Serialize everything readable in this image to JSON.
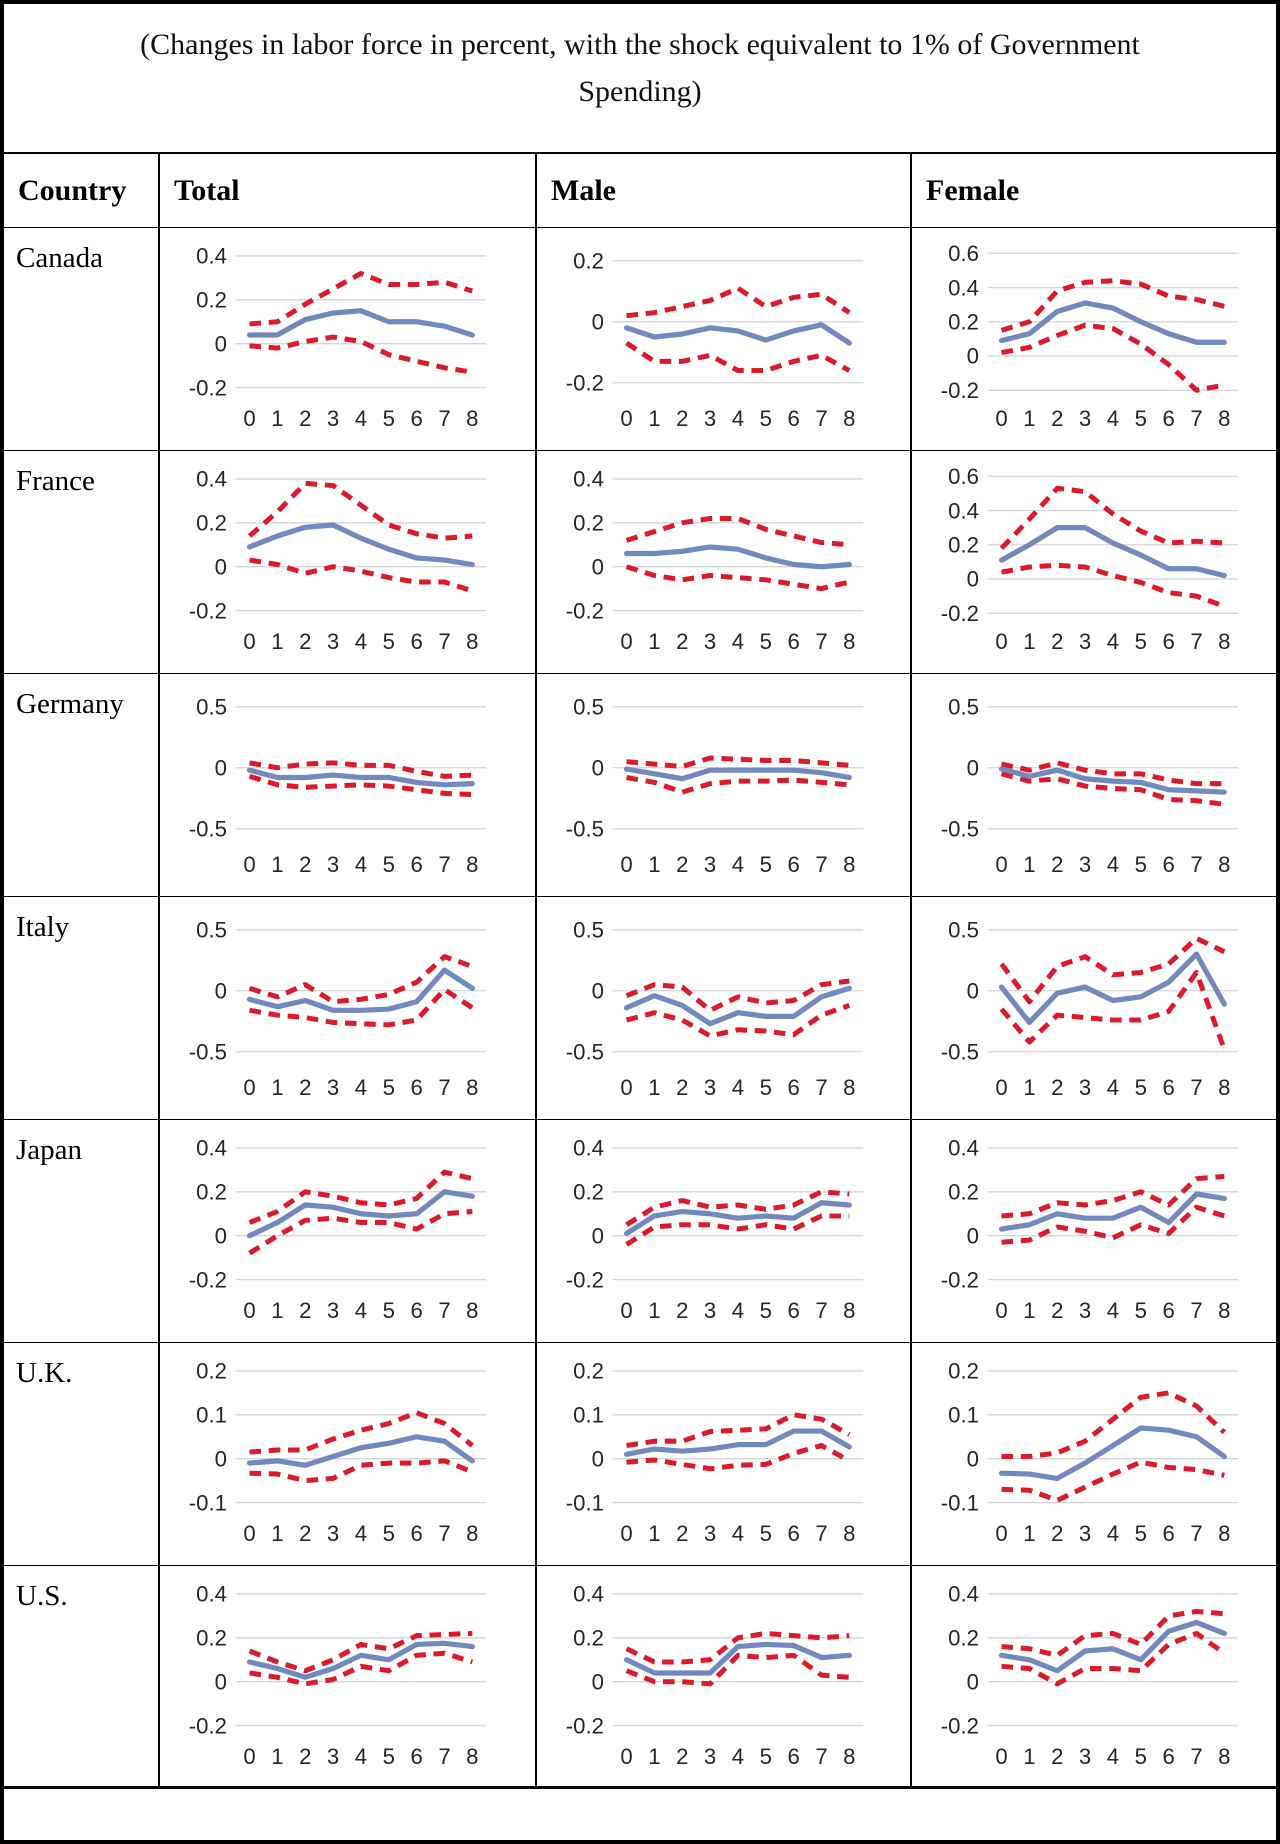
{
  "title": "(Changes in labor force in percent, with the shock equivalent to 1% of Government Spending)",
  "table": {
    "headers": [
      "Country",
      "Total",
      "Male",
      "Female"
    ]
  },
  "colors": {
    "mean_line": "#7189BE",
    "band_line": "#DB1B2B",
    "gridline": "#D6D6D6",
    "axis_text": "#262626"
  },
  "chart_data": {
    "type": "line",
    "x": [
      0,
      1,
      2,
      3,
      4,
      5,
      6,
      7,
      8
    ],
    "x_labels": [
      "0",
      "1",
      "2",
      "3",
      "4",
      "5",
      "6",
      "7",
      "8"
    ],
    "series_legend": [
      "point estimate (solid blue)",
      "upper band (dashed red)",
      "lower band (dashed red)"
    ],
    "grid": true,
    "rows": [
      {
        "country": "Canada",
        "charts": {
          "total": {
            "ticks": [
              0.4,
              0.2,
              0,
              -0.2
            ],
            "mean": [
              0.04,
              0.04,
              0.11,
              0.14,
              0.15,
              0.1,
              0.1,
              0.08,
              0.04
            ],
            "upper": [
              0.09,
              0.1,
              0.18,
              0.25,
              0.32,
              0.27,
              0.27,
              0.28,
              0.24
            ],
            "lower": [
              -0.01,
              -0.02,
              0.01,
              0.03,
              0.01,
              -0.05,
              -0.08,
              -0.11,
              -0.13
            ]
          },
          "male": {
            "ticks": [
              0.2,
              0,
              -0.2
            ],
            "mean": [
              -0.02,
              -0.05,
              -0.04,
              -0.02,
              -0.03,
              -0.06,
              -0.03,
              -0.01,
              -0.07
            ],
            "upper": [
              0.02,
              0.03,
              0.05,
              0.07,
              0.11,
              0.05,
              0.08,
              0.09,
              0.03
            ],
            "lower": [
              -0.07,
              -0.13,
              -0.13,
              -0.11,
              -0.16,
              -0.16,
              -0.13,
              -0.11,
              -0.16
            ]
          },
          "female": {
            "ticks": [
              0.6,
              0.4,
              0.2,
              0,
              -0.2
            ],
            "mean": [
              0.09,
              0.13,
              0.26,
              0.31,
              0.28,
              0.2,
              0.13,
              0.08,
              0.08
            ],
            "upper": [
              0.15,
              0.2,
              0.38,
              0.43,
              0.44,
              0.42,
              0.35,
              0.33,
              0.29
            ],
            "lower": [
              0.02,
              0.05,
              0.12,
              0.18,
              0.16,
              0.07,
              -0.05,
              -0.2,
              -0.17
            ]
          }
        }
      },
      {
        "country": "France",
        "charts": {
          "total": {
            "ticks": [
              0.4,
              0.2,
              0,
              -0.2
            ],
            "mean": [
              0.09,
              0.14,
              0.18,
              0.19,
              0.13,
              0.08,
              0.04,
              0.03,
              0.01
            ],
            "upper": [
              0.14,
              0.25,
              0.38,
              0.37,
              0.28,
              0.19,
              0.15,
              0.13,
              0.14
            ],
            "lower": [
              0.03,
              0.01,
              -0.03,
              0.0,
              -0.02,
              -0.05,
              -0.07,
              -0.07,
              -0.11
            ]
          },
          "male": {
            "ticks": [
              0.4,
              0.2,
              0,
              -0.2
            ],
            "mean": [
              0.06,
              0.06,
              0.07,
              0.09,
              0.08,
              0.04,
              0.01,
              0.0,
              0.01
            ],
            "upper": [
              0.12,
              0.16,
              0.2,
              0.22,
              0.22,
              0.17,
              0.14,
              0.11,
              0.1
            ],
            "lower": [
              0.0,
              -0.04,
              -0.06,
              -0.04,
              -0.05,
              -0.06,
              -0.08,
              -0.1,
              -0.07
            ]
          },
          "female": {
            "ticks": [
              0.6,
              0.4,
              0.2,
              0,
              -0.2
            ],
            "mean": [
              0.11,
              0.2,
              0.3,
              0.3,
              0.21,
              0.14,
              0.06,
              0.06,
              0.02
            ],
            "upper": [
              0.18,
              0.35,
              0.53,
              0.51,
              0.38,
              0.28,
              0.21,
              0.22,
              0.21
            ],
            "lower": [
              0.04,
              0.07,
              0.08,
              0.07,
              0.02,
              -0.02,
              -0.08,
              -0.1,
              -0.16
            ]
          }
        }
      },
      {
        "country": "Germany",
        "charts": {
          "total": {
            "ticks": [
              0.5,
              0,
              -0.5
            ],
            "mean": [
              -0.02,
              -0.08,
              -0.08,
              -0.06,
              -0.08,
              -0.08,
              -0.12,
              -0.14,
              -0.13
            ],
            "upper": [
              0.04,
              0.0,
              0.03,
              0.04,
              0.02,
              0.02,
              -0.03,
              -0.07,
              -0.06
            ],
            "lower": [
              -0.07,
              -0.14,
              -0.16,
              -0.15,
              -0.14,
              -0.15,
              -0.18,
              -0.21,
              -0.22
            ]
          },
          "male": {
            "ticks": [
              0.5,
              0,
              -0.5
            ],
            "mean": [
              -0.01,
              -0.05,
              -0.09,
              -0.02,
              -0.02,
              -0.02,
              -0.02,
              -0.04,
              -0.08
            ],
            "upper": [
              0.05,
              0.03,
              0.01,
              0.08,
              0.07,
              0.06,
              0.06,
              0.04,
              0.02
            ],
            "lower": [
              -0.08,
              -0.12,
              -0.2,
              -0.13,
              -0.11,
              -0.11,
              -0.1,
              -0.12,
              -0.14
            ]
          },
          "female": {
            "ticks": [
              0.5,
              0,
              -0.5
            ],
            "mean": [
              -0.01,
              -0.07,
              -0.02,
              -0.09,
              -0.11,
              -0.12,
              -0.18,
              -0.19,
              -0.2
            ],
            "upper": [
              0.03,
              -0.02,
              0.04,
              -0.02,
              -0.05,
              -0.05,
              -0.1,
              -0.13,
              -0.13
            ],
            "lower": [
              -0.05,
              -0.11,
              -0.09,
              -0.15,
              -0.17,
              -0.18,
              -0.26,
              -0.27,
              -0.3
            ]
          }
        }
      },
      {
        "country": "Italy",
        "charts": {
          "total": {
            "ticks": [
              0.5,
              0,
              -0.5
            ],
            "mean": [
              -0.07,
              -0.13,
              -0.08,
              -0.16,
              -0.16,
              -0.15,
              -0.09,
              0.17,
              0.02
            ],
            "upper": [
              0.02,
              -0.05,
              0.05,
              -0.09,
              -0.07,
              -0.03,
              0.07,
              0.28,
              0.2
            ],
            "lower": [
              -0.16,
              -0.2,
              -0.22,
              -0.26,
              -0.27,
              -0.28,
              -0.24,
              0.01,
              -0.14
            ]
          },
          "male": {
            "ticks": [
              0.5,
              0,
              -0.5
            ],
            "mean": [
              -0.14,
              -0.04,
              -0.12,
              -0.27,
              -0.18,
              -0.21,
              -0.21,
              -0.05,
              0.02
            ],
            "upper": [
              -0.04,
              0.05,
              0.03,
              -0.16,
              -0.05,
              -0.1,
              -0.08,
              0.05,
              0.08
            ],
            "lower": [
              -0.24,
              -0.18,
              -0.24,
              -0.37,
              -0.32,
              -0.33,
              -0.36,
              -0.2,
              -0.12
            ]
          },
          "female": {
            "ticks": [
              0.5,
              0,
              -0.5
            ],
            "mean": [
              0.03,
              -0.26,
              -0.02,
              0.03,
              -0.08,
              -0.05,
              0.07,
              0.3,
              -0.11
            ],
            "upper": [
              0.22,
              -0.09,
              0.2,
              0.28,
              0.13,
              0.15,
              0.22,
              0.43,
              0.32
            ],
            "lower": [
              -0.15,
              -0.42,
              -0.2,
              -0.22,
              -0.24,
              -0.24,
              -0.17,
              0.15,
              -0.48
            ]
          }
        }
      },
      {
        "country": "Japan",
        "charts": {
          "total": {
            "ticks": [
              0.4,
              0.2,
              0,
              -0.2
            ],
            "mean": [
              0.0,
              0.06,
              0.14,
              0.13,
              0.1,
              0.09,
              0.1,
              0.2,
              0.18
            ],
            "upper": [
              0.06,
              0.11,
              0.2,
              0.18,
              0.15,
              0.14,
              0.17,
              0.29,
              0.26
            ],
            "lower": [
              -0.08,
              0.0,
              0.07,
              0.08,
              0.06,
              0.06,
              0.03,
              0.1,
              0.11
            ]
          },
          "male": {
            "ticks": [
              0.4,
              0.2,
              0,
              -0.2
            ],
            "mean": [
              0.01,
              0.09,
              0.11,
              0.1,
              0.08,
              0.09,
              0.08,
              0.15,
              0.14
            ],
            "upper": [
              0.05,
              0.13,
              0.16,
              0.13,
              0.14,
              0.12,
              0.14,
              0.2,
              0.19
            ],
            "lower": [
              -0.04,
              0.04,
              0.05,
              0.05,
              0.03,
              0.05,
              0.03,
              0.09,
              0.09
            ]
          },
          "female": {
            "ticks": [
              0.4,
              0.2,
              0,
              -0.2
            ],
            "mean": [
              0.03,
              0.05,
              0.1,
              0.08,
              0.08,
              0.13,
              0.06,
              0.19,
              0.17
            ],
            "upper": [
              0.09,
              0.1,
              0.15,
              0.14,
              0.16,
              0.2,
              0.14,
              0.26,
              0.27
            ],
            "lower": [
              -0.03,
              -0.02,
              0.04,
              0.02,
              -0.01,
              0.05,
              0.01,
              0.13,
              0.09
            ]
          }
        }
      },
      {
        "country": "U.K.",
        "charts": {
          "total": {
            "ticks": [
              0.2,
              0.1,
              0,
              -0.1
            ],
            "mean": [
              -0.01,
              -0.005,
              -0.015,
              0.005,
              0.025,
              0.035,
              0.05,
              0.04,
              -0.005
            ],
            "upper": [
              0.015,
              0.02,
              0.02,
              0.045,
              0.065,
              0.08,
              0.105,
              0.08,
              0.03
            ],
            "lower": [
              -0.033,
              -0.035,
              -0.05,
              -0.045,
              -0.015,
              -0.01,
              -0.01,
              -0.005,
              -0.03
            ]
          },
          "male": {
            "ticks": [
              0.2,
              0.1,
              0,
              -0.1
            ],
            "mean": [
              0.01,
              0.022,
              0.017,
              0.022,
              0.032,
              0.032,
              0.063,
              0.063,
              0.027
            ],
            "upper": [
              0.03,
              0.04,
              0.04,
              0.062,
              0.065,
              0.068,
              0.1,
              0.09,
              0.055
            ],
            "lower": [
              -0.008,
              -0.003,
              -0.013,
              -0.023,
              -0.015,
              -0.013,
              0.012,
              0.03,
              -0.005
            ]
          },
          "female": {
            "ticks": [
              0.2,
              0.1,
              0,
              -0.1
            ],
            "mean": [
              -0.033,
              -0.035,
              -0.045,
              -0.01,
              0.03,
              0.07,
              0.065,
              0.05,
              0.005
            ],
            "upper": [
              0.005,
              0.005,
              0.013,
              0.04,
              0.09,
              0.14,
              0.15,
              0.12,
              0.06
            ],
            "lower": [
              -0.07,
              -0.072,
              -0.095,
              -0.065,
              -0.035,
              -0.008,
              -0.02,
              -0.025,
              -0.038
            ]
          }
        }
      },
      {
        "country": "U.S.",
        "charts": {
          "total": {
            "ticks": [
              0.4,
              0.2,
              0,
              -0.2
            ],
            "mean": [
              0.09,
              0.06,
              0.02,
              0.06,
              0.12,
              0.1,
              0.17,
              0.175,
              0.16
            ],
            "upper": [
              0.14,
              0.09,
              0.05,
              0.1,
              0.17,
              0.15,
              0.21,
              0.215,
              0.22
            ],
            "lower": [
              0.04,
              0.02,
              -0.01,
              0.01,
              0.07,
              0.05,
              0.12,
              0.13,
              0.09
            ]
          },
          "male": {
            "ticks": [
              0.4,
              0.2,
              0,
              -0.2
            ],
            "mean": [
              0.1,
              0.04,
              0.04,
              0.04,
              0.16,
              0.17,
              0.165,
              0.11,
              0.12
            ],
            "upper": [
              0.15,
              0.09,
              0.09,
              0.1,
              0.2,
              0.22,
              0.21,
              0.2,
              0.21
            ],
            "lower": [
              0.05,
              0.0,
              0.0,
              -0.01,
              0.12,
              0.11,
              0.12,
              0.03,
              0.02
            ]
          },
          "female": {
            "ticks": [
              0.4,
              0.2,
              0,
              -0.2
            ],
            "mean": [
              0.12,
              0.1,
              0.05,
              0.14,
              0.15,
              0.1,
              0.23,
              0.27,
              0.22
            ],
            "upper": [
              0.16,
              0.15,
              0.12,
              0.21,
              0.22,
              0.17,
              0.3,
              0.32,
              0.31
            ],
            "lower": [
              0.07,
              0.06,
              -0.01,
              0.06,
              0.06,
              0.05,
              0.17,
              0.22,
              0.13
            ]
          }
        }
      }
    ]
  }
}
